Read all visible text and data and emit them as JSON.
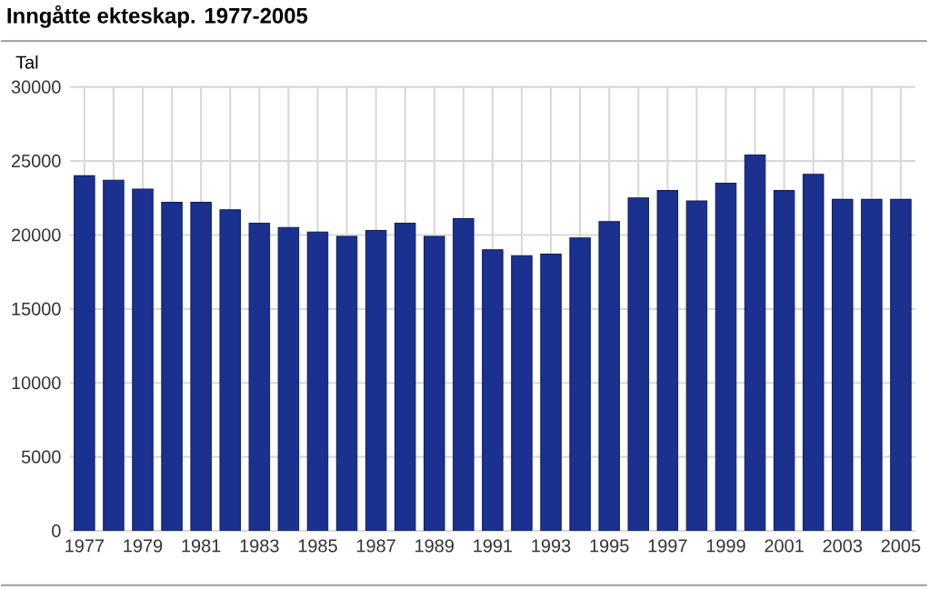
{
  "chart_data": {
    "type": "bar",
    "title": "Inngåtte ekteskap. 1977-2005",
    "ylabel": "Tal",
    "categories": [
      "1977",
      null,
      "1979",
      null,
      "1981",
      null,
      "1983",
      null,
      "1985",
      null,
      "1987",
      null,
      "1989",
      null,
      "1991",
      null,
      "1993",
      null,
      "1995",
      null,
      "1997",
      null,
      "1999",
      null,
      "2001",
      null,
      "2003",
      null,
      "2005"
    ],
    "values": [
      24000,
      23700,
      23100,
      22200,
      22200,
      21700,
      20800,
      20500,
      20200,
      19900,
      20300,
      20800,
      19900,
      21100,
      19000,
      18600,
      18700,
      19800,
      20900,
      22500,
      23000,
      22300,
      23500,
      25400,
      23000,
      24100,
      22400,
      22400,
      22400
    ],
    "color": "#1a318f",
    "ylim": [
      0,
      30000
    ],
    "yticks": [
      0,
      5000,
      10000,
      15000,
      20000,
      25000,
      30000
    ],
    "grid": true
  }
}
